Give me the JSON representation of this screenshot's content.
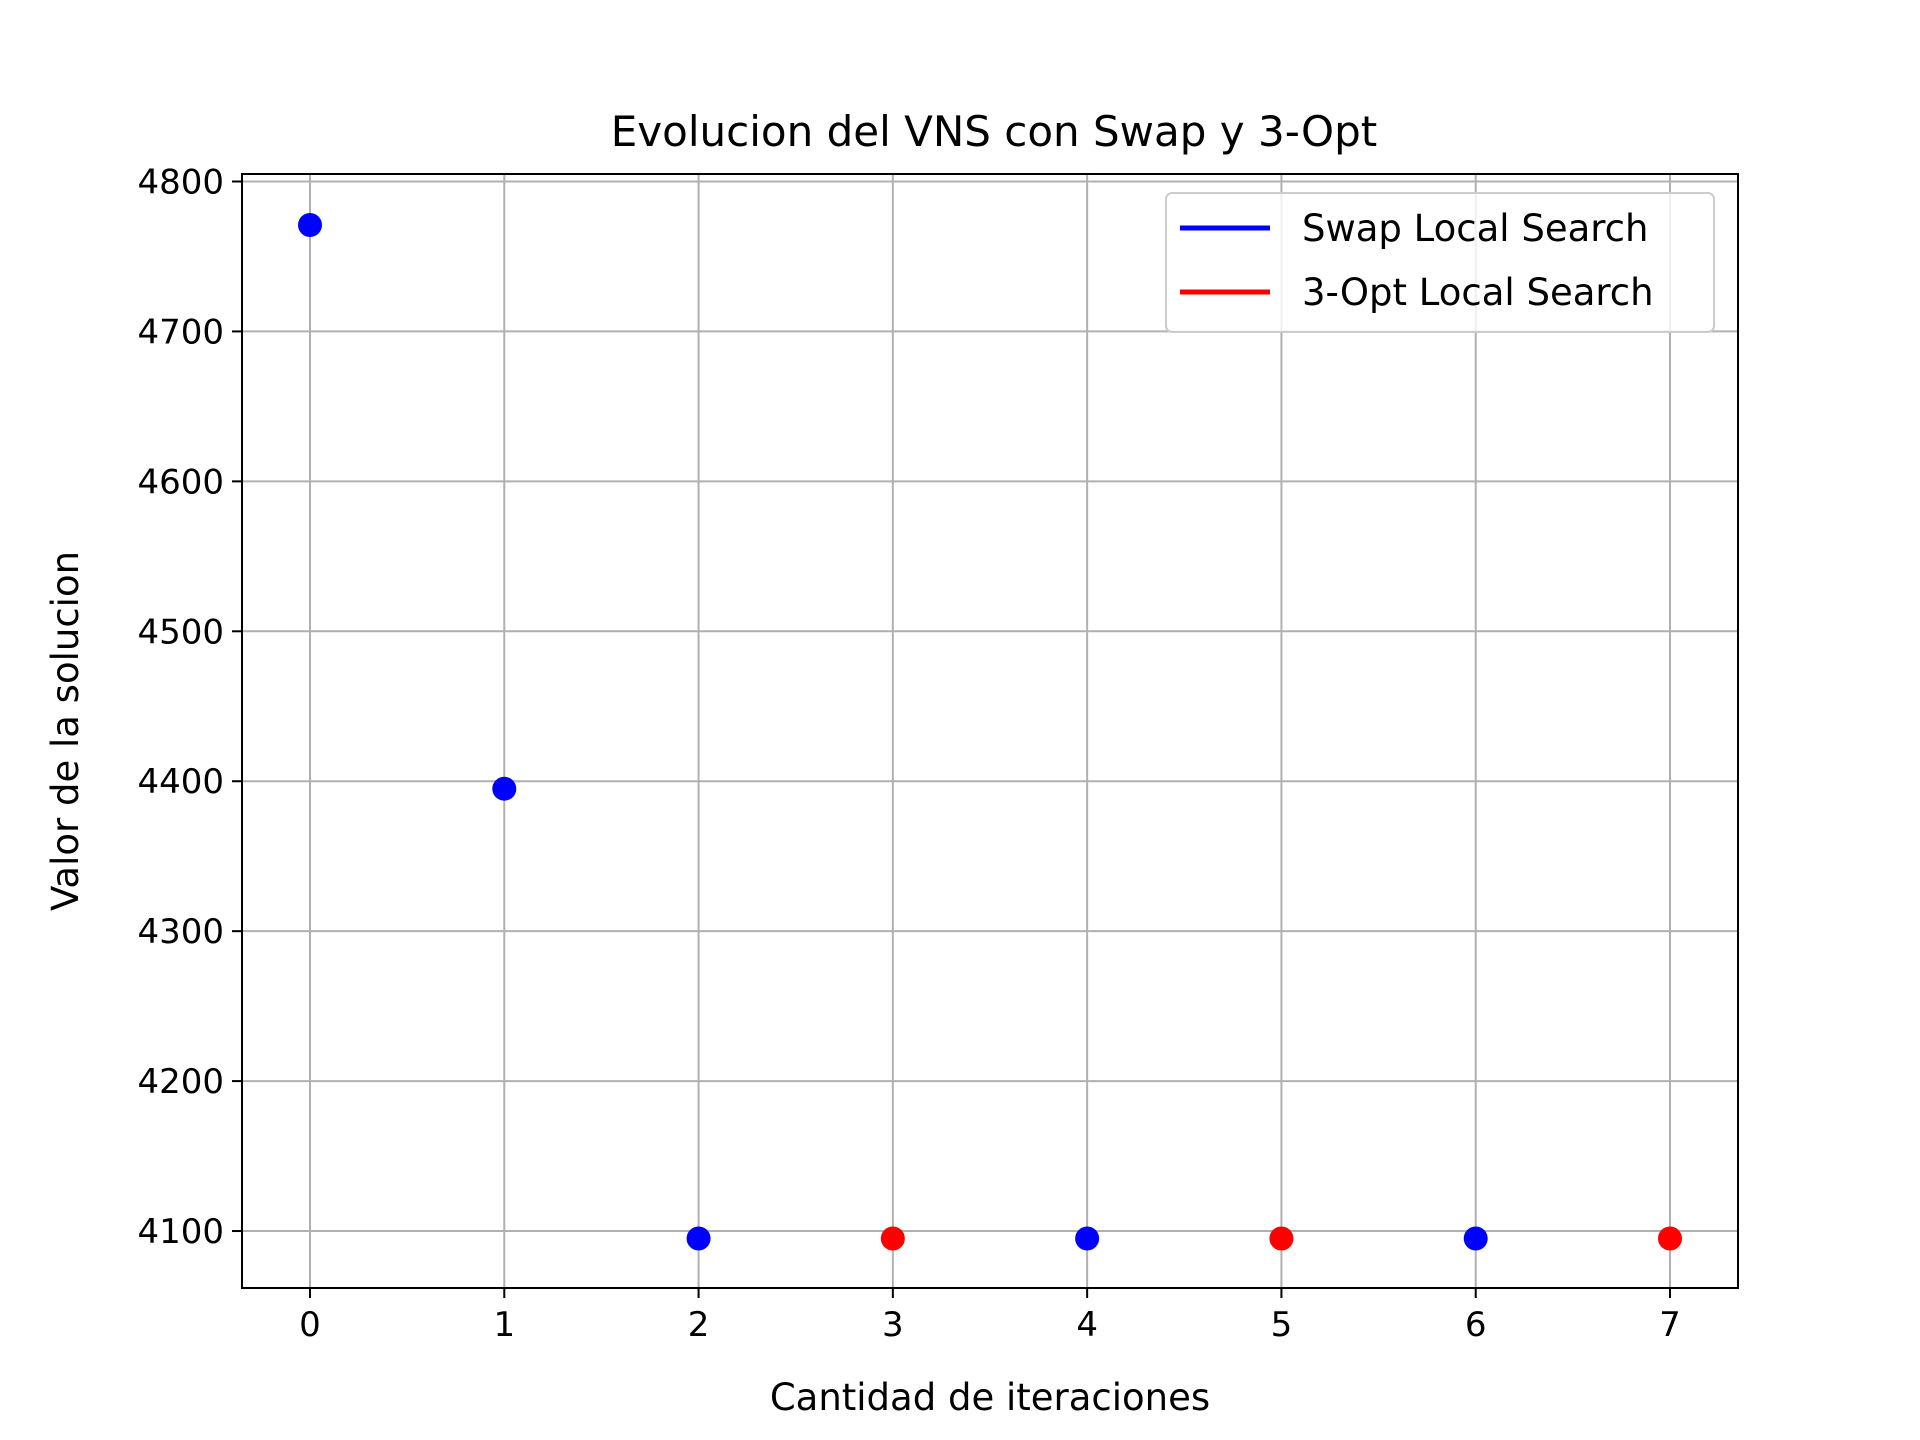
{
  "chart_data": {
    "type": "scatter",
    "title": "Evolucion del VNS con Swap y 3-Opt",
    "xlabel": "Cantidad de iteraciones",
    "ylabel": "Valor de la solucion",
    "xlim": [
      -0.35,
      7.35
    ],
    "ylim": [
      4062,
      4805
    ],
    "xticks": [
      0,
      1,
      2,
      3,
      4,
      5,
      6,
      7
    ],
    "yticks": [
      4100,
      4200,
      4300,
      4400,
      4500,
      4600,
      4700,
      4800
    ],
    "grid": true,
    "legend_position": "top-right",
    "series": [
      {
        "name": "Swap Local Search",
        "color": "#0000ff",
        "points": [
          {
            "x": 0,
            "y": 4771
          },
          {
            "x": 1,
            "y": 4395
          },
          {
            "x": 2,
            "y": 4095
          },
          {
            "x": 4,
            "y": 4095
          },
          {
            "x": 6,
            "y": 4095
          }
        ]
      },
      {
        "name": "3-Opt Local Search",
        "color": "#ff0000",
        "points": [
          {
            "x": 3,
            "y": 4095
          },
          {
            "x": 5,
            "y": 4095
          },
          {
            "x": 7,
            "y": 4095
          }
        ]
      }
    ]
  }
}
